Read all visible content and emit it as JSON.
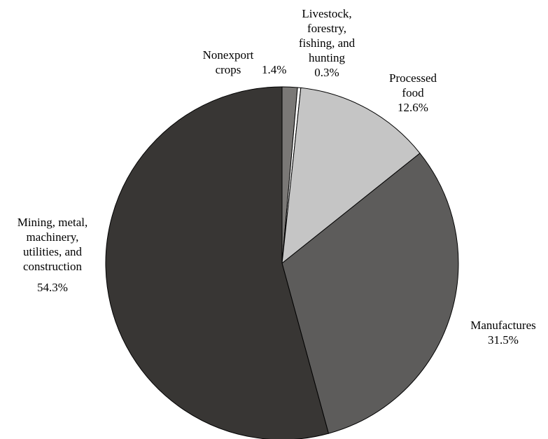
{
  "chart_data": {
    "type": "pie",
    "title": "",
    "start": "top",
    "direction": "clockwise",
    "slices": [
      {
        "lines": [
          "Nonexport",
          "crops"
        ],
        "value_label": "1.4%",
        "value": 1.4,
        "color": "#7a7876"
      },
      {
        "lines": [
          "Livestock,",
          "forestry,",
          "fishing, and",
          "hunting"
        ],
        "value_label": "0.3%",
        "value": 0.3,
        "color": "#ffffff"
      },
      {
        "lines": [
          "Processed",
          "food"
        ],
        "value_label": "12.6%",
        "value": 12.6,
        "color": "#c5c5c5"
      },
      {
        "lines": [
          "Manufactures"
        ],
        "value_label": "31.5%",
        "value": 31.5,
        "color": "#5d5c5b"
      },
      {
        "lines": [
          "Mining, metal,",
          "machinery,",
          "utilities, and",
          "construction"
        ],
        "value_label": "54.3%",
        "value": 54.3,
        "color": "#383634"
      }
    ]
  }
}
